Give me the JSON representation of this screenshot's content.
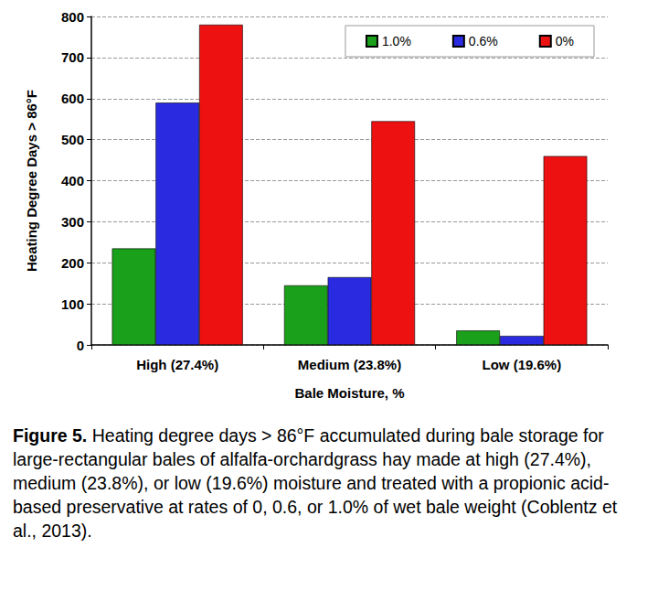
{
  "chart_data": {
    "type": "bar",
    "categories": [
      "High (27.4%)",
      "Medium (23.8%)",
      "Low (19.6%)"
    ],
    "series": [
      {
        "name": "1.0%",
        "color": "#1aa01a",
        "values": [
          235,
          145,
          35
        ]
      },
      {
        "name": "0.6%",
        "color": "#2a2ae0",
        "values": [
          590,
          165,
          22
        ]
      },
      {
        "name": "0%",
        "color": "#ee1111",
        "values": [
          780,
          545,
          460
        ]
      }
    ],
    "x_label": "Bale Moisture, %",
    "y_label": "Heating Degree Days > 86°F",
    "ylim": [
      0,
      800
    ],
    "yticks": [
      0,
      100,
      200,
      300,
      400,
      500,
      600,
      700,
      800
    ],
    "grid": true,
    "legend": "top right",
    "caption_label": "Figure 5.",
    "caption": "Heating degree days > 86°F accumulated during bale storage for large-rectangular bales of alfalfa-orchardgrass hay made at high (27.4%), medium (23.8%), or low (19.6%) moisture and treated with a propionic acid-based preservative at rates of 0, 0.6, or 1.0% of wet bale weight (Coblentz et al., 2013)."
  }
}
